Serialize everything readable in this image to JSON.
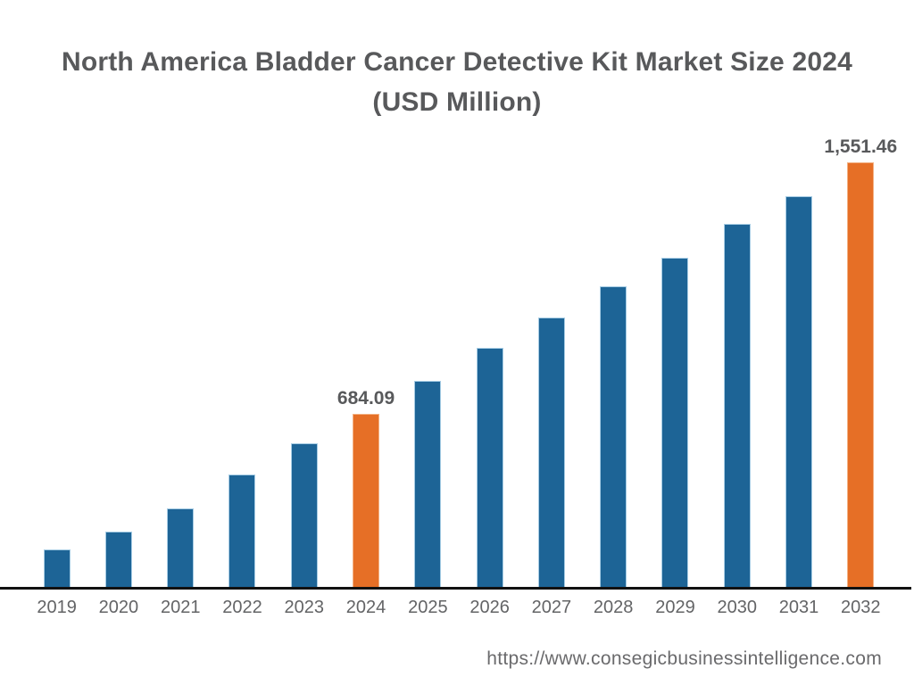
{
  "title": {
    "line1": "North America Bladder Cancer Detective Kit Market Size 2024",
    "line2": "(USD Million)"
  },
  "source_url": "https://www.consegicbusinessintelligence.com",
  "colors": {
    "bar_default": "#1d6496",
    "bar_default_edge": "#a6cce4",
    "bar_highlight": "#e66f26",
    "bar_highlight_edge": "#f3b183",
    "axis_line": "#111111",
    "title_text": "#58595b",
    "data_label_text": "#58595b",
    "tick_text": "#636466",
    "url_text": "#6a6a6c"
  },
  "chart_data": {
    "type": "bar",
    "title": "North America Bladder Cancer Detective Kit Market Size 2024",
    "subtitle": "(USD Million)",
    "xlabel": "",
    "ylabel": "",
    "unit": "USD Million",
    "grid": false,
    "legend": false,
    "categories": [
      "2019",
      "2020",
      "2021",
      "2022",
      "2023",
      "2024",
      "2025",
      "2026",
      "2027",
      "2028",
      "2029",
      "2030",
      "2031",
      "2032"
    ],
    "values": [
      217,
      278,
      358,
      475,
      583,
      684.09,
      798,
      912,
      1016,
      1124,
      1222,
      1339,
      1435,
      1551.46
    ],
    "data_labels": [
      "",
      "",
      "",
      "",
      "",
      "684.09",
      "",
      "",
      "",
      "",
      "",
      "",
      "",
      "1,551.46"
    ],
    "labeled_values": {
      "2024": "684.09",
      "2032": "1,551.46"
    },
    "highlight_indices": [
      5,
      13
    ],
    "ylim": [
      87,
      1871
    ]
  }
}
